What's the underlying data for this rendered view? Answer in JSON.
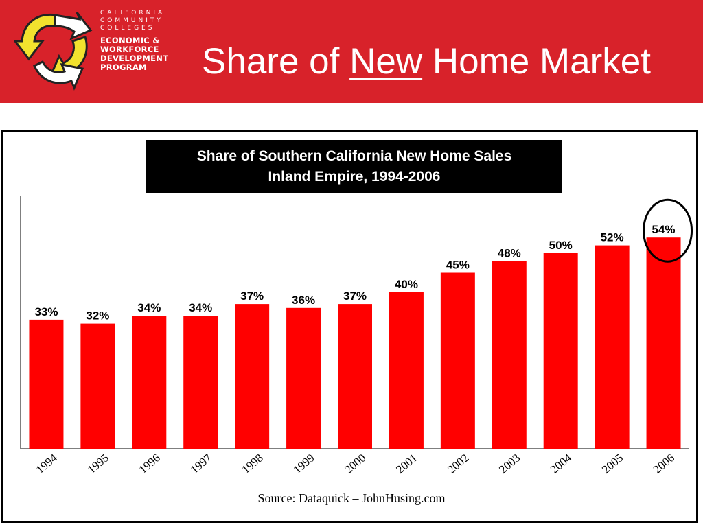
{
  "header": {
    "logo": {
      "line1": "CALIFORNIA",
      "line2": "COMMUNITY",
      "line3": "COLLEGES",
      "line4": "ECONOMIC &",
      "line5": "WORKFORCE",
      "line6": "DEVELOPMENT",
      "line7": "PROGRAM"
    },
    "title_pre": "Share of ",
    "title_underlined": "New",
    "title_post": " Home Market"
  },
  "colors": {
    "header_bg": "#d8222a",
    "bar": "#ff0000",
    "highlight_circle": "#000000"
  },
  "chart_data": {
    "type": "bar",
    "title": "Share of Southern California New Home Sales",
    "subtitle": "Inland Empire, 1994-2006",
    "categories": [
      "1994",
      "1995",
      "1996",
      "1997",
      "1998",
      "1999",
      "2000",
      "2001",
      "2002",
      "2003",
      "2004",
      "2005",
      "2006"
    ],
    "values": [
      33,
      32,
      34,
      34,
      37,
      36,
      37,
      40,
      45,
      48,
      50,
      52,
      54
    ],
    "value_labels": [
      "33%",
      "32%",
      "34%",
      "34%",
      "37%",
      "36%",
      "37%",
      "40%",
      "45%",
      "48%",
      "50%",
      "52%",
      "54%"
    ],
    "ylim": [
      0,
      60
    ],
    "grid": false,
    "legend": "none",
    "highlighted_category": "2006",
    "source": "Source:  Dataquick – JohnHusing.com"
  }
}
